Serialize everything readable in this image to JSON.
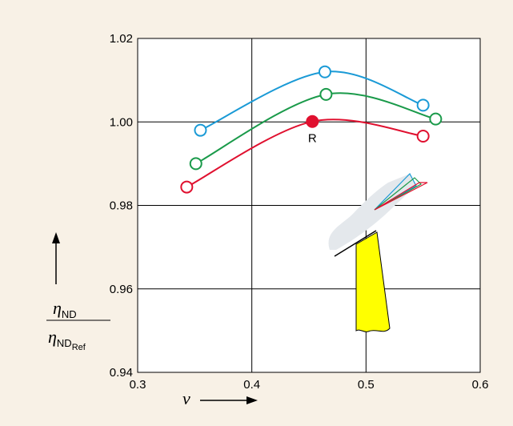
{
  "chart_data": {
    "type": "line",
    "xlabel": "v",
    "ylabel": {
      "symbol": "η",
      "numerator_sub": "ND",
      "denominator_sub": "ND",
      "denominator_subsub": "Ref"
    },
    "series": [
      {
        "color": "#1a9ad6",
        "x": [
          0.355,
          0.464,
          0.55
        ],
        "values": [
          0.998,
          1.012,
          1.004
        ]
      },
      {
        "color": "#1a9a4a",
        "x": [
          0.351,
          0.465,
          0.561
        ],
        "values": [
          0.99,
          1.0066,
          1.0007
        ]
      },
      {
        "color": "#e0102f",
        "x": [
          0.343,
          0.453,
          0.55
        ],
        "values": [
          0.9844,
          1.0001,
          0.9966
        ]
      }
    ],
    "annotations": [
      {
        "text": "R",
        "series": 2,
        "point": 1
      }
    ],
    "xlim": [
      0.3,
      0.6
    ],
    "xticks": [
      0.3,
      0.4,
      0.5,
      0.6
    ],
    "ylim": [
      0.94,
      1.02
    ],
    "yticks": [
      0.94,
      0.96,
      0.98,
      {
        "value": 1,
        "label": "1.00"
      },
      1.02
    ],
    "grid": true
  }
}
